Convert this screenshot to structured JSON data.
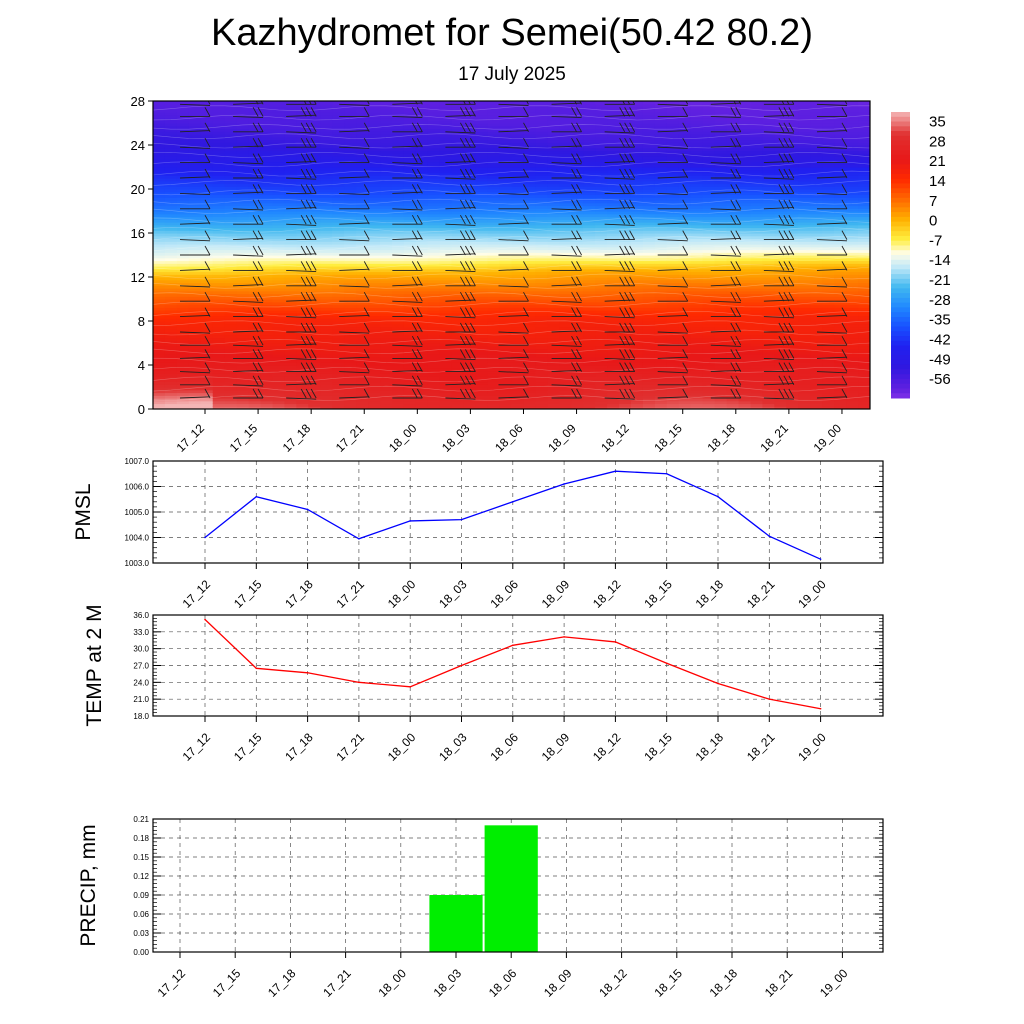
{
  "title": "Kazhydromet for Semei(50.42 80.2)",
  "subtitle": "17 July 2025",
  "times": [
    "17_12",
    "17_15",
    "17_18",
    "17_21",
    "18_00",
    "18_03",
    "18_06",
    "18_09",
    "18_12",
    "18_15",
    "18_18",
    "18_21",
    "19_00"
  ],
  "chart_data": [
    {
      "type": "heatmap",
      "name_hint": "vertical cross-section",
      "xlabel": "",
      "ylabel": "",
      "ylim": [
        0,
        28
      ],
      "yticks": [
        0,
        4,
        8,
        12,
        16,
        20,
        24,
        28
      ],
      "colorbar_ticks": [
        35,
        28,
        21,
        14,
        7,
        0,
        -7,
        -14,
        -21,
        -28,
        -35,
        -42,
        -49,
        -56
      ],
      "colorbar_range": [
        -63,
        38
      ],
      "color_stops": [
        {
          "v": 38,
          "c": "#f4b6b6"
        },
        {
          "v": 30,
          "c": "#e03030"
        },
        {
          "v": 21,
          "c": "#e81818"
        },
        {
          "v": 14,
          "c": "#ff2a00"
        },
        {
          "v": 7,
          "c": "#ff6a00"
        },
        {
          "v": 0,
          "c": "#ffb000"
        },
        {
          "v": -7,
          "c": "#ffee40"
        },
        {
          "v": -12,
          "c": "#fffde8"
        },
        {
          "v": -17,
          "c": "#bfe8f8"
        },
        {
          "v": -24,
          "c": "#40b8f0"
        },
        {
          "v": -31,
          "c": "#2088ff"
        },
        {
          "v": -38,
          "c": "#1850ff"
        },
        {
          "v": -45,
          "c": "#2020f0"
        },
        {
          "v": -52,
          "c": "#3018e0"
        },
        {
          "v": -60,
          "c": "#6020e0"
        },
        {
          "v": -63,
          "c": "#8030e8"
        }
      ],
      "profile_levels": [
        0,
        2,
        4,
        6,
        8,
        10,
        12,
        13,
        14,
        16,
        18,
        20,
        22,
        24,
        26,
        28
      ],
      "profile_values": [
        30,
        25,
        22,
        19,
        16,
        8,
        0,
        -8,
        -14,
        -22,
        -32,
        -40,
        -46,
        -52,
        -56,
        -58
      ],
      "barb_levels": [
        1,
        2.2,
        3.4,
        4.6,
        5.8,
        7,
        8.4,
        9.8,
        11.2,
        12.6,
        14,
        15.4,
        16.8,
        18.2,
        19.6,
        21,
        22.4,
        23.8,
        25.2,
        26.6,
        27.7
      ]
    },
    {
      "type": "line",
      "ylabel": "PMSL",
      "ylim": [
        1003,
        1007
      ],
      "yticks": [
        "1003.0",
        "1004.0",
        "1005.0",
        "1006.0",
        "1007.0"
      ],
      "values": [
        1004.0,
        1005.6,
        1005.1,
        1003.95,
        1004.65,
        1004.7,
        1005.4,
        1006.1,
        1006.6,
        1006.5,
        1005.6,
        1004.05,
        1003.15
      ],
      "color": "#0000ff"
    },
    {
      "type": "line",
      "ylabel": "TEMP at 2 M",
      "ylim": [
        18,
        36
      ],
      "yticks": [
        "18.0",
        "21.0",
        "24.0",
        "27.0",
        "30.0",
        "33.0",
        "36.0"
      ],
      "values": [
        35.2,
        26.5,
        25.7,
        24.0,
        23.2,
        27.0,
        30.6,
        32.1,
        31.2,
        27.4,
        23.8,
        21.0,
        19.3
      ],
      "color": "#ff0000"
    },
    {
      "type": "bar",
      "ylabel": "PRECIP, mm",
      "ylim": [
        0,
        0.21
      ],
      "yticks": [
        "0.00",
        "0.03",
        "0.06",
        "0.09",
        "0.12",
        "0.15",
        "0.18",
        "0.21"
      ],
      "values": [
        0,
        0,
        0,
        0,
        0,
        0.09,
        0.2,
        0,
        0,
        0,
        0,
        0,
        0
      ],
      "color": "#00ee00"
    }
  ]
}
